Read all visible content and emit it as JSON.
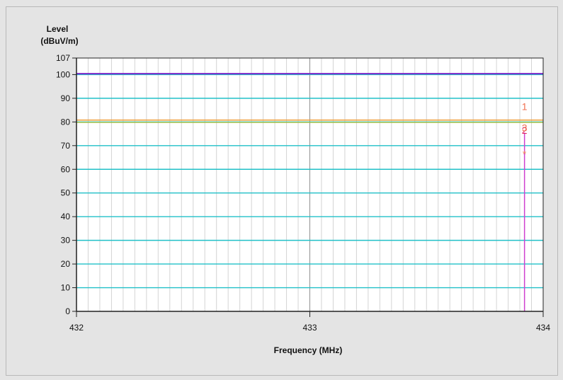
{
  "chart_data": {
    "type": "line",
    "ylabel_line1": "Level",
    "ylabel_line2": "(dBuV/m)",
    "xlabel": "Frequency (MHz)",
    "xlim": [
      432,
      434
    ],
    "ylim": [
      0,
      107
    ],
    "x_ticks": [
      432,
      433,
      434
    ],
    "y_ticks": [
      0,
      10,
      20,
      30,
      40,
      50,
      60,
      70,
      80,
      90,
      100,
      107
    ],
    "x_minor_step": 0.05,
    "grid": true,
    "series": [
      {
        "x": [
          432,
          434
        ],
        "y": [
          100.4,
          100.4
        ],
        "color": "#7a28c8",
        "width": 2
      },
      {
        "x": [
          432,
          434
        ],
        "y": [
          80.8,
          80.8
        ],
        "color": "#f0a040",
        "width": 1.6
      },
      {
        "x": [
          432,
          434
        ],
        "y": [
          79.8,
          79.8
        ],
        "color": "#b8c030",
        "width": 1.2
      }
    ],
    "vertical_marker": {
      "x": 433.92,
      "y_top": 75.5,
      "color": "#d040d0"
    },
    "markers": [
      {
        "label": "1",
        "x": 433.92,
        "y": 86.5,
        "color": "#f07050"
      },
      {
        "label": "2",
        "x": 433.92,
        "y": 76.5,
        "color": "#e02060"
      },
      {
        "label": "3",
        "x": 433.92,
        "y": 77.5,
        "color": "#f07050"
      },
      {
        "label": "*",
        "x": 433.92,
        "y": 66.5,
        "color": "#f08060"
      }
    ],
    "colors": {
      "major_grid": "#20c0c8",
      "minor_grid": "#d4d4d4",
      "center_grid": "#909090",
      "plot_bg": "#ffffff",
      "axis": "#222222"
    }
  }
}
